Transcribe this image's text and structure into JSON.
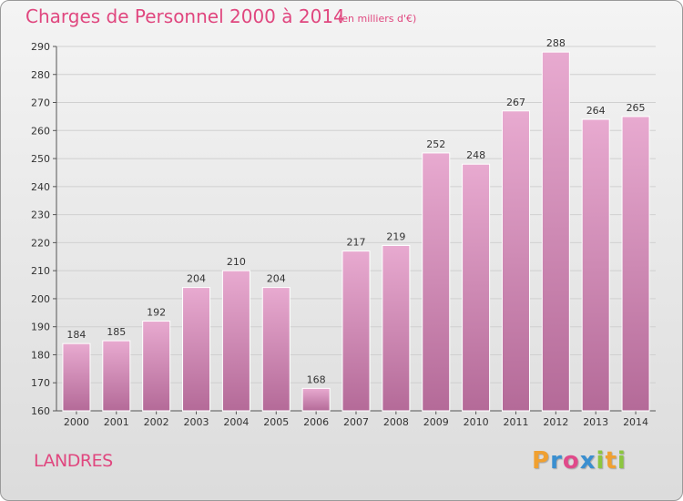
{
  "title": "Charges de Personnel 2000 à 2014",
  "subtitle": "(en milliers d'€)",
  "commune": "LANDRES",
  "logo": {
    "text": "Proxiti",
    "letters": [
      "P",
      "r",
      "o",
      "x",
      "i",
      "t",
      "i"
    ],
    "colors": [
      "#f0a030",
      "#3a8fd0",
      "#e04a8a",
      "#3a8fd0",
      "#8cc63f",
      "#f0a030",
      "#8cc63f"
    ]
  },
  "colors": {
    "title": "#e0477f",
    "bar_top": "#e8aad0",
    "bar_bottom": "#b46a98",
    "grid": "#d0d0d0"
  },
  "chart_data": {
    "type": "bar",
    "categories": [
      "2000",
      "2001",
      "2002",
      "2003",
      "2004",
      "2005",
      "2006",
      "2007",
      "2008",
      "2009",
      "2010",
      "2011",
      "2012",
      "2013",
      "2014"
    ],
    "values": [
      184,
      185,
      192,
      204,
      210,
      204,
      168,
      217,
      219,
      252,
      248,
      267,
      288,
      264,
      265
    ],
    "ylim": [
      160,
      290
    ],
    "yticks": [
      160,
      170,
      180,
      190,
      200,
      210,
      220,
      230,
      240,
      250,
      260,
      270,
      280,
      290
    ],
    "grid": true,
    "data_labels": true
  }
}
